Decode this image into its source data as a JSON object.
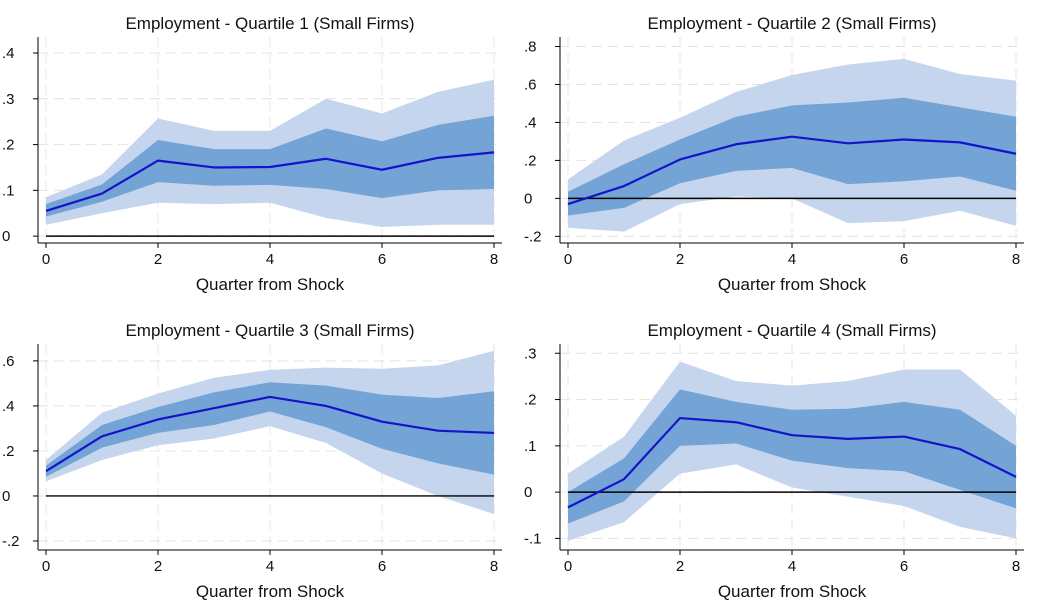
{
  "chart_data": [
    {
      "type": "line",
      "title": "Employment - Quartile 1 (Small Firms)",
      "xlabel": "Quarter from Shock",
      "ylabel": "",
      "x": [
        0,
        1,
        2,
        3,
        4,
        5,
        6,
        7,
        8
      ],
      "xticks": [
        0,
        2,
        4,
        6,
        8
      ],
      "xlim": [
        0,
        8
      ],
      "ylim": [
        -0.015,
        0.435
      ],
      "yticks": [
        0,
        0.1,
        0.2,
        0.3,
        0.4
      ],
      "ytick_labels": [
        "0",
        ".1",
        ".2",
        ".3",
        ".4"
      ],
      "series": [
        {
          "role": "band-outer-upper",
          "values": [
            0.085,
            0.135,
            0.257,
            0.23,
            0.23,
            0.3,
            0.268,
            0.315,
            0.342
          ]
        },
        {
          "role": "band-outer-lower",
          "values": [
            0.025,
            0.05,
            0.073,
            0.07,
            0.073,
            0.04,
            0.02,
            0.025,
            0.025
          ]
        },
        {
          "role": "band-inner-upper",
          "values": [
            0.07,
            0.113,
            0.21,
            0.19,
            0.19,
            0.235,
            0.207,
            0.243,
            0.263
          ]
        },
        {
          "role": "band-inner-lower",
          "values": [
            0.043,
            0.075,
            0.118,
            0.11,
            0.112,
            0.103,
            0.083,
            0.1,
            0.103
          ]
        },
        {
          "role": "estimate",
          "values": [
            0.055,
            0.093,
            0.165,
            0.15,
            0.151,
            0.169,
            0.145,
            0.171,
            0.183
          ]
        }
      ],
      "zero_line": 0,
      "grid": true,
      "colors": {
        "outer": "#c6d5ee",
        "inner": "#74a3d6",
        "line": "#1414c8"
      }
    },
    {
      "type": "line",
      "title": "Employment - Quartile 2 (Small Firms)",
      "xlabel": "Quarter from Shock",
      "ylabel": "",
      "x": [
        0,
        1,
        2,
        3,
        4,
        5,
        6,
        7,
        8
      ],
      "xticks": [
        0,
        2,
        4,
        6,
        8
      ],
      "xlim": [
        0,
        8
      ],
      "ylim": [
        -0.235,
        0.85
      ],
      "yticks": [
        -0.2,
        0,
        0.2,
        0.4,
        0.6,
        0.8
      ],
      "ytick_labels": [
        "-.2",
        "0",
        ".2",
        ".4",
        ".6",
        ".8"
      ],
      "series": [
        {
          "role": "band-outer-upper",
          "values": [
            0.1,
            0.305,
            0.425,
            0.56,
            0.65,
            0.705,
            0.735,
            0.655,
            0.62
          ]
        },
        {
          "role": "band-outer-lower",
          "values": [
            -0.155,
            -0.175,
            -0.03,
            0.01,
            0.0,
            -0.13,
            -0.12,
            -0.065,
            -0.145
          ]
        },
        {
          "role": "band-inner-upper",
          "values": [
            0.035,
            0.18,
            0.31,
            0.43,
            0.49,
            0.505,
            0.53,
            0.48,
            0.43
          ]
        },
        {
          "role": "band-inner-lower",
          "values": [
            -0.09,
            -0.05,
            0.08,
            0.145,
            0.16,
            0.075,
            0.09,
            0.115,
            0.04
          ]
        },
        {
          "role": "estimate",
          "values": [
            -0.03,
            0.065,
            0.205,
            0.285,
            0.325,
            0.29,
            0.31,
            0.295,
            0.235
          ]
        }
      ],
      "zero_line": 0,
      "grid": true,
      "colors": {
        "outer": "#c6d5ee",
        "inner": "#74a3d6",
        "line": "#1414c8"
      }
    },
    {
      "type": "line",
      "title": "Employment - Quartile 3 (Small Firms)",
      "xlabel": "Quarter from Shock",
      "ylabel": "",
      "x": [
        0,
        1,
        2,
        3,
        4,
        5,
        6,
        7,
        8
      ],
      "xticks": [
        0,
        2,
        4,
        6,
        8
      ],
      "xlim": [
        0,
        8
      ],
      "ylim": [
        -0.24,
        0.675
      ],
      "yticks": [
        -0.2,
        0,
        0.2,
        0.4,
        0.6
      ],
      "ytick_labels": [
        "-.2",
        "0",
        ".2",
        ".4",
        ".6"
      ],
      "series": [
        {
          "role": "band-outer-upper",
          "values": [
            0.16,
            0.37,
            0.455,
            0.525,
            0.56,
            0.57,
            0.565,
            0.58,
            0.645
          ]
        },
        {
          "role": "band-outer-lower",
          "values": [
            0.065,
            0.16,
            0.225,
            0.255,
            0.31,
            0.235,
            0.1,
            0.0,
            -0.08
          ]
        },
        {
          "role": "band-inner-upper",
          "values": [
            0.135,
            0.315,
            0.395,
            0.46,
            0.505,
            0.49,
            0.45,
            0.435,
            0.465
          ]
        },
        {
          "role": "band-inner-lower",
          "values": [
            0.085,
            0.215,
            0.28,
            0.315,
            0.375,
            0.305,
            0.21,
            0.145,
            0.095
          ]
        },
        {
          "role": "estimate",
          "values": [
            0.11,
            0.265,
            0.34,
            0.39,
            0.44,
            0.4,
            0.33,
            0.29,
            0.28
          ]
        }
      ],
      "zero_line": 0,
      "grid": true,
      "colors": {
        "outer": "#c6d5ee",
        "inner": "#74a3d6",
        "line": "#1414c8"
      }
    },
    {
      "type": "line",
      "title": "Employment - Quartile 4 (Small Firms)",
      "xlabel": "Quarter from Shock",
      "ylabel": "",
      "x": [
        0,
        1,
        2,
        3,
        4,
        5,
        6,
        7,
        8
      ],
      "xticks": [
        0,
        2,
        4,
        6,
        8
      ],
      "xlim": [
        0,
        8
      ],
      "ylim": [
        -0.125,
        0.32
      ],
      "yticks": [
        -0.1,
        0,
        0.1,
        0.2,
        0.3
      ],
      "ytick_labels": [
        "-.1",
        "0",
        ".1",
        ".2",
        ".3"
      ],
      "series": [
        {
          "role": "band-outer-upper",
          "values": [
            0.04,
            0.12,
            0.282,
            0.24,
            0.23,
            0.24,
            0.265,
            0.265,
            0.165
          ]
        },
        {
          "role": "band-outer-lower",
          "values": [
            -0.105,
            -0.065,
            0.04,
            0.06,
            0.01,
            -0.01,
            -0.03,
            -0.075,
            -0.1
          ]
        },
        {
          "role": "band-inner-upper",
          "values": [
            0.0,
            0.073,
            0.222,
            0.195,
            0.178,
            0.18,
            0.195,
            0.178,
            0.1
          ]
        },
        {
          "role": "band-inner-lower",
          "values": [
            -0.068,
            -0.02,
            0.1,
            0.105,
            0.068,
            0.052,
            0.045,
            0.005,
            -0.035
          ]
        },
        {
          "role": "estimate",
          "values": [
            -0.033,
            0.028,
            0.16,
            0.151,
            0.123,
            0.115,
            0.12,
            0.093,
            0.033
          ]
        }
      ],
      "zero_line": 0,
      "grid": true,
      "colors": {
        "outer": "#c6d5ee",
        "inner": "#74a3d6",
        "line": "#1414c8"
      }
    }
  ]
}
